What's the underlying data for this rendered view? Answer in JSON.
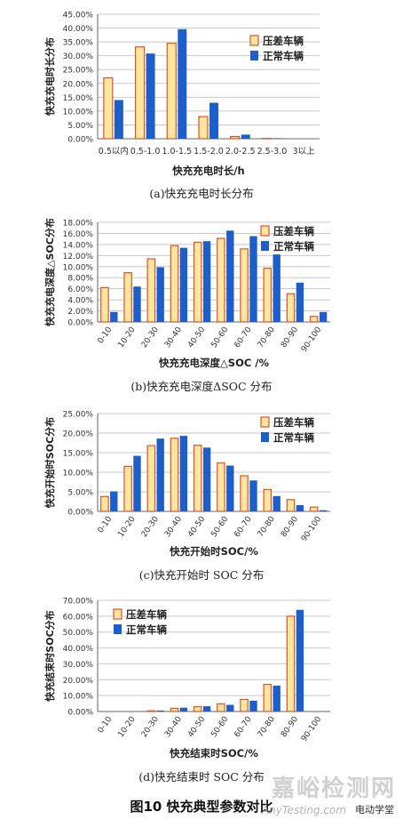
{
  "figure_caption": "图10   快充典型参数对比",
  "watermark": {
    "main": "嘉峪检测网",
    "sub": "AnyTesting.com",
    "badge": "电动学堂"
  },
  "colors": {
    "series1_fill": "#FDE7A0",
    "series1_stroke": "#E0522A",
    "series2_fill": "#1D5EC8",
    "grid": "#c8c8c8",
    "axis": "#666666"
  },
  "chart_data": [
    {
      "type": "bar",
      "caption": "(a)快充充电时长分布",
      "xlabel": "快充充电时长/h",
      "ylabel": "快充充电时长分布",
      "ylim": [
        0,
        45
      ],
      "yticks": [
        "0.00%",
        "5.00%",
        "10.00%",
        "15.00%",
        "20.00%",
        "25.00%",
        "30.00%",
        "35.00%",
        "40.00%",
        "45.00%"
      ],
      "categories": [
        "0.5以内",
        "0.5-1.0",
        "1.0-1.5",
        "1.5-2.0",
        "2.0-2.5",
        "2.5-3.0",
        "3以上"
      ],
      "series": [
        {
          "name": "压差车辆",
          "values": [
            22.0,
            33.2,
            34.5,
            8.0,
            0.8,
            0.1,
            0
          ]
        },
        {
          "name": "正常车辆",
          "values": [
            14.0,
            30.8,
            39.6,
            13.0,
            1.5,
            0.2,
            0
          ]
        }
      ],
      "legend": "top-right",
      "rotate_xticks": false
    },
    {
      "type": "bar",
      "caption": "(b)快充充电深度ΔSOC 分布",
      "xlabel": "快充充电深度△SOC /%",
      "ylabel": "快充充电深度△SOC分布",
      "ylim": [
        0,
        18
      ],
      "yticks": [
        "0.00%",
        "2.00%",
        "4.00%",
        "6.00%",
        "8.00%",
        "10.00%",
        "12.00%",
        "14.00%",
        "16.00%",
        "18.00%"
      ],
      "categories": [
        "0-10",
        "10-20",
        "20-30",
        "30-40",
        "40-50",
        "50-60",
        "60-70",
        "70-80",
        "80-90",
        "90-100"
      ],
      "series": [
        {
          "name": "压差车辆",
          "values": [
            6.2,
            8.9,
            11.4,
            13.8,
            14.4,
            15.1,
            13.2,
            9.7,
            5.1,
            1.0
          ]
        },
        {
          "name": "正常车辆",
          "values": [
            1.8,
            6.4,
            9.9,
            13.4,
            14.6,
            16.5,
            15.5,
            12.2,
            7.1,
            1.8
          ]
        }
      ],
      "legend": "top-right",
      "rotate_xticks": true
    },
    {
      "type": "bar",
      "caption": "(c)快充开始时 SOC 分布",
      "xlabel": "快充开始时SOC/%",
      "ylabel": "快充开始时SOC分布",
      "ylim": [
        0,
        25
      ],
      "yticks": [
        "0.00%",
        "5.00%",
        "10.00%",
        "15.00%",
        "20.00%",
        "25.00%"
      ],
      "categories": [
        "0-10",
        "10-20",
        "20-30",
        "30-40",
        "40-50",
        "50-60",
        "60-70",
        "70-80",
        "80-90",
        "90-100"
      ],
      "series": [
        {
          "name": "压差车辆",
          "values": [
            3.8,
            11.5,
            16.8,
            18.7,
            16.9,
            12.4,
            9.1,
            5.6,
            3.0,
            1.1
          ]
        },
        {
          "name": "正常车辆",
          "values": [
            5.1,
            14.2,
            18.6,
            19.3,
            16.3,
            11.7,
            7.9,
            3.9,
            1.6,
            0.3
          ]
        }
      ],
      "legend": "top-right",
      "rotate_xticks": true
    },
    {
      "type": "bar",
      "caption": "(d)快充结束时 SOC 分布",
      "xlabel": "快充结束时SOC/%",
      "ylabel": "快充结束时SOC分布",
      "ylim": [
        0,
        70
      ],
      "yticks": [
        "0.00%",
        "10.00%",
        "20.00%",
        "30.00%",
        "40.00%",
        "50.00%",
        "60.00%",
        "70.00%"
      ],
      "categories": [
        "0-10",
        "10-20",
        "20-30",
        "30-40",
        "40-50",
        "50-60",
        "60-70",
        "70-80",
        "80-90",
        "90-100"
      ],
      "series": [
        {
          "name": "压差车辆",
          "values": [
            0,
            0,
            0.4,
            2.0,
            3.0,
            4.8,
            7.6,
            17.0,
            60.0,
            0
          ]
        },
        {
          "name": "正常车辆",
          "values": [
            0,
            0,
            0.6,
            2.4,
            3.3,
            4.2,
            6.8,
            16.3,
            64.0,
            0
          ]
        }
      ],
      "legend": "top-left",
      "rotate_xticks": true
    }
  ]
}
